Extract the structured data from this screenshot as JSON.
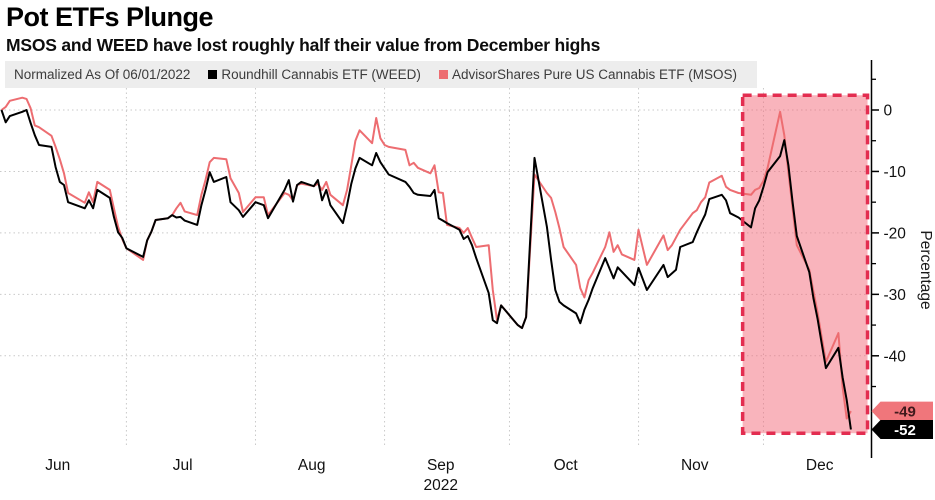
{
  "header": {
    "title": "Pot ETFs Plunge",
    "subtitle": "MSOS and WEED have lost roughly half their value from December highs"
  },
  "legend": {
    "normalized_label": "Normalized As Of 06/01/2022",
    "items": [
      {
        "label": "Roundhill Cannabis ETF (WEED)",
        "color": "#000000"
      },
      {
        "label": "AdvisorShares Pure US Cannabis ETF (MSOS)",
        "color": "#ed6d71"
      }
    ]
  },
  "chart_data": {
    "type": "line",
    "title": "Pot ETFs Plunge",
    "ylabel": "Percentage",
    "grid": true,
    "x_axis": {
      "year_label": "2022",
      "months": [
        "Jun",
        "Jul",
        "Aug",
        "Sep",
        "Oct",
        "Nov",
        "Dec"
      ],
      "month_start_days": [
        0,
        30,
        61,
        92,
        122,
        153,
        183
      ],
      "range_days": [
        0,
        209
      ]
    },
    "y_axis": {
      "title": "Percentage",
      "major_ticks": [
        0,
        -10,
        -20,
        -30,
        -40
      ],
      "minor_ticks": [
        5,
        -5,
        -15,
        -25,
        -35,
        -45
      ],
      "range": [
        -55,
        3
      ]
    },
    "highlight_region": {
      "start": "11-26",
      "end": "12-26",
      "top_value": 2.4,
      "bottom_value": -52.6,
      "fill": "#f4697a",
      "fill_opacity": 0.5,
      "border_color": "#e32d50"
    },
    "series": [
      {
        "name": "AdvisorShares Pure US Cannabis ETF (MSOS)",
        "color": "#ed6d71",
        "last_label": "-49",
        "badge_bg": "#f0767b",
        "badge_fg": "#40191c",
        "points": [
          [
            "06-01",
            0
          ],
          [
            "06-02",
            0.5
          ],
          [
            "06-03",
            1.5
          ],
          [
            "06-06",
            2
          ],
          [
            "06-07",
            1.8
          ],
          [
            "06-08",
            0.3
          ],
          [
            "06-09",
            -2.5
          ],
          [
            "06-10",
            -2.8
          ],
          [
            "06-13",
            -4.2
          ],
          [
            "06-14",
            -6
          ],
          [
            "06-15",
            -8
          ],
          [
            "06-16",
            -10.3
          ],
          [
            "06-17",
            -13.5
          ],
          [
            "06-21",
            -15.1
          ],
          [
            "06-22",
            -13.4
          ],
          [
            "06-23",
            -15
          ],
          [
            "06-24",
            -11.7
          ],
          [
            "06-27",
            -13
          ],
          [
            "06-28",
            -16
          ],
          [
            "06-29",
            -19
          ],
          [
            "06-30",
            -21
          ],
          [
            "07-01",
            -22.5
          ],
          [
            "07-05",
            -24.4
          ],
          [
            "07-06",
            -21.2
          ],
          [
            "07-07",
            -19.8
          ],
          [
            "07-08",
            -17.9
          ],
          [
            "07-11",
            -17.6
          ],
          [
            "07-12",
            -17.1
          ],
          [
            "07-13",
            -16
          ],
          [
            "07-14",
            -15.1
          ],
          [
            "07-15",
            -16.5
          ],
          [
            "07-18",
            -17.1
          ],
          [
            "07-19",
            -13.8
          ],
          [
            "07-20",
            -11.4
          ],
          [
            "07-21",
            -8.5
          ],
          [
            "07-22",
            -7.8
          ],
          [
            "07-25",
            -8
          ],
          [
            "07-26",
            -11.1
          ],
          [
            "07-28",
            -13.5
          ],
          [
            "07-29",
            -16.6
          ],
          [
            "08-01",
            -14.2
          ],
          [
            "08-03",
            -14.2
          ],
          [
            "08-04",
            -17.1
          ],
          [
            "08-08",
            -13.5
          ],
          [
            "08-09",
            -13.8
          ],
          [
            "08-10",
            -14.7
          ],
          [
            "08-11",
            -12.2
          ],
          [
            "08-12",
            -12
          ],
          [
            "08-15",
            -12.4
          ],
          [
            "08-16",
            -12
          ],
          [
            "08-17",
            -13
          ],
          [
            "08-18",
            -11.7
          ],
          [
            "08-19",
            -13.8
          ],
          [
            "08-22",
            -15.5
          ],
          [
            "08-23",
            -13
          ],
          [
            "08-24",
            -9
          ],
          [
            "08-25",
            -5
          ],
          [
            "08-26",
            -3.3
          ],
          [
            "08-29",
            -5.4
          ],
          [
            "08-30",
            -1.3
          ],
          [
            "08-31",
            -4.6
          ],
          [
            "09-01",
            -5.7
          ],
          [
            "09-02",
            -6
          ],
          [
            "09-06",
            -6.5
          ],
          [
            "09-07",
            -9
          ],
          [
            "09-08",
            -8.6
          ],
          [
            "09-09",
            -9.4
          ],
          [
            "09-12",
            -10.3
          ],
          [
            "09-13",
            -9
          ],
          [
            "09-14",
            -13.4
          ],
          [
            "09-15",
            -13.5
          ],
          [
            "09-16",
            -18.7
          ],
          [
            "09-19",
            -19.2
          ],
          [
            "09-20",
            -20
          ],
          [
            "09-21",
            -19.2
          ],
          [
            "09-22",
            -20.8
          ],
          [
            "09-23",
            -22.3
          ],
          [
            "09-26",
            -22
          ],
          [
            "09-27",
            -29.3
          ],
          [
            "09-28",
            -34.2
          ],
          [
            "09-29",
            -31.8
          ],
          [
            "10-03",
            -35
          ],
          [
            "10-04",
            -35.5
          ],
          [
            "10-05",
            -33.7
          ],
          [
            "10-07",
            -10.5
          ],
          [
            "10-10",
            -13.5
          ],
          [
            "10-11",
            -14.3
          ],
          [
            "10-12",
            -16.6
          ],
          [
            "10-13",
            -19.2
          ],
          [
            "10-14",
            -22.3
          ],
          [
            "10-17",
            -25.2
          ],
          [
            "10-18",
            -29
          ],
          [
            "10-19",
            -30.5
          ],
          [
            "10-20",
            -27.7
          ],
          [
            "10-21",
            -26.5
          ],
          [
            "10-24",
            -22.3
          ],
          [
            "10-25",
            -19.9
          ],
          [
            "10-26",
            -23.1
          ],
          [
            "10-27",
            -22
          ],
          [
            "10-28",
            -23.5
          ],
          [
            "10-31",
            -24.4
          ],
          [
            "11-01",
            -19.5
          ],
          [
            "11-03",
            -25.2
          ],
          [
            "11-07",
            -20.4
          ],
          [
            "11-08",
            -22.8
          ],
          [
            "11-09",
            -22
          ],
          [
            "11-11",
            -19.5
          ],
          [
            "11-14",
            -16.8
          ],
          [
            "11-15",
            -16.3
          ],
          [
            "11-16",
            -15
          ],
          [
            "11-17",
            -14.2
          ],
          [
            "11-18",
            -11.8
          ],
          [
            "11-21",
            -10.7
          ],
          [
            "11-22",
            -12.5
          ],
          [
            "11-23",
            -13
          ],
          [
            "11-25",
            -13.5
          ],
          [
            "11-28",
            -13.8
          ],
          [
            "11-29",
            -13
          ],
          [
            "11-30",
            -12.7
          ],
          [
            "12-01",
            -11.5
          ],
          [
            "12-02",
            -9.4
          ],
          [
            "12-05",
            -0.3
          ],
          [
            "12-06",
            -4.1
          ],
          [
            "12-07",
            -10.1
          ],
          [
            "12-08",
            -16
          ],
          [
            "12-09",
            -22
          ],
          [
            "12-12",
            -26
          ],
          [
            "12-13",
            -29.5
          ],
          [
            "12-14",
            -33
          ],
          [
            "12-15",
            -37
          ],
          [
            "12-16",
            -41
          ],
          [
            "12-19",
            -36.3
          ],
          [
            "12-20",
            -45.1
          ],
          [
            "12-21",
            -50.2
          ],
          [
            "12-22",
            -49
          ]
        ]
      },
      {
        "name": "Roundhill Cannabis ETF (WEED)",
        "color": "#000000",
        "last_label": "-52",
        "badge_bg": "#000000",
        "badge_fg": "#ffffff",
        "points": [
          [
            "06-01",
            0
          ],
          [
            "06-02",
            -2
          ],
          [
            "06-03",
            -1
          ],
          [
            "06-06",
            -0.3
          ],
          [
            "06-07",
            0
          ],
          [
            "06-08",
            -2.1
          ],
          [
            "06-09",
            -4.1
          ],
          [
            "06-10",
            -5.7
          ],
          [
            "06-13",
            -6
          ],
          [
            "06-14",
            -9.3
          ],
          [
            "06-15",
            -11.7
          ],
          [
            "06-16",
            -12.2
          ],
          [
            "06-17",
            -15
          ],
          [
            "06-21",
            -16
          ],
          [
            "06-22",
            -14.7
          ],
          [
            "06-23",
            -16
          ],
          [
            "06-24",
            -13
          ],
          [
            "06-27",
            -14.3
          ],
          [
            "06-28",
            -17.4
          ],
          [
            "06-29",
            -19.9
          ],
          [
            "06-30",
            -20.8
          ],
          [
            "07-01",
            -22.5
          ],
          [
            "07-05",
            -23.9
          ],
          [
            "07-06",
            -21.2
          ],
          [
            "07-07",
            -19.8
          ],
          [
            "07-08",
            -17.9
          ],
          [
            "07-11",
            -17.6
          ],
          [
            "07-12",
            -17.1
          ],
          [
            "07-13",
            -17.5
          ],
          [
            "07-14",
            -17.4
          ],
          [
            "07-15",
            -18
          ],
          [
            "07-18",
            -18.7
          ],
          [
            "07-19",
            -15.5
          ],
          [
            "07-20",
            -13
          ],
          [
            "07-21",
            -10.1
          ],
          [
            "07-22",
            -11.7
          ],
          [
            "07-25",
            -10.9
          ],
          [
            "07-26",
            -15
          ],
          [
            "07-28",
            -16.3
          ],
          [
            "07-29",
            -17.4
          ],
          [
            "08-01",
            -15
          ],
          [
            "08-03",
            -15.5
          ],
          [
            "08-04",
            -17.6
          ],
          [
            "08-08",
            -13
          ],
          [
            "08-09",
            -11.4
          ],
          [
            "08-10",
            -14.9
          ],
          [
            "08-11",
            -12.2
          ],
          [
            "08-12",
            -11.7
          ],
          [
            "08-15",
            -12.4
          ],
          [
            "08-16",
            -11.4
          ],
          [
            "08-17",
            -14.7
          ],
          [
            "08-18",
            -13
          ],
          [
            "08-19",
            -15.5
          ],
          [
            "08-22",
            -18.4
          ],
          [
            "08-23",
            -15.5
          ],
          [
            "08-24",
            -12
          ],
          [
            "08-25",
            -9.5
          ],
          [
            "08-26",
            -7.8
          ],
          [
            "08-29",
            -9
          ],
          [
            "08-30",
            -7
          ],
          [
            "08-31",
            -8.5
          ],
          [
            "09-01",
            -9.5
          ],
          [
            "09-02",
            -10.5
          ],
          [
            "09-06",
            -11.7
          ],
          [
            "09-07",
            -12.5
          ],
          [
            "09-08",
            -13.5
          ],
          [
            "09-09",
            -13.8
          ],
          [
            "09-12",
            -14
          ],
          [
            "09-13",
            -13
          ],
          [
            "09-14",
            -17.6
          ],
          [
            "09-15",
            -18
          ],
          [
            "09-16",
            -18.4
          ],
          [
            "09-19",
            -19.5
          ],
          [
            "09-20",
            -21
          ],
          [
            "09-21",
            -20.5
          ],
          [
            "09-22",
            -22
          ],
          [
            "09-23",
            -24.1
          ],
          [
            "09-26",
            -29.8
          ],
          [
            "09-27",
            -34.2
          ],
          [
            "09-28",
            -34.7
          ],
          [
            "09-29",
            -31.8
          ],
          [
            "10-03",
            -35
          ],
          [
            "10-04",
            -35.5
          ],
          [
            "10-05",
            -33.7
          ],
          [
            "10-07",
            -7.8
          ],
          [
            "10-10",
            -19
          ],
          [
            "10-11",
            -24.4
          ],
          [
            "10-12",
            -29.3
          ],
          [
            "10-13",
            -31.2
          ],
          [
            "10-14",
            -31.8
          ],
          [
            "10-17",
            -33.1
          ],
          [
            "10-18",
            -34.7
          ],
          [
            "10-19",
            -32.5
          ],
          [
            "10-20",
            -30.9
          ],
          [
            "10-21",
            -29
          ],
          [
            "10-24",
            -24.1
          ],
          [
            "10-26",
            -27.4
          ],
          [
            "10-27",
            -25.6
          ],
          [
            "10-31",
            -28.5
          ],
          [
            "11-01",
            -25.7
          ],
          [
            "11-03",
            -29.3
          ],
          [
            "11-07",
            -25.2
          ],
          [
            "11-08",
            -27.2
          ],
          [
            "11-10",
            -26
          ],
          [
            "11-11",
            -22.3
          ],
          [
            "11-14",
            -21.5
          ],
          [
            "11-15",
            -19.9
          ],
          [
            "11-16",
            -18.4
          ],
          [
            "11-17",
            -17
          ],
          [
            "11-18",
            -14.5
          ],
          [
            "11-21",
            -13.8
          ],
          [
            "11-22",
            -14.7
          ],
          [
            "11-23",
            -16.8
          ],
          [
            "11-25",
            -17.5
          ],
          [
            "11-28",
            -19.1
          ],
          [
            "11-29",
            -16
          ],
          [
            "11-30",
            -14.7
          ],
          [
            "12-01",
            -12.5
          ],
          [
            "12-02",
            -10.1
          ],
          [
            "12-05",
            -7.5
          ],
          [
            "12-06",
            -4.9
          ],
          [
            "12-07",
            -9
          ],
          [
            "12-08",
            -15
          ],
          [
            "12-09",
            -20.5
          ],
          [
            "12-12",
            -26.4
          ],
          [
            "12-13",
            -30.6
          ],
          [
            "12-14",
            -34
          ],
          [
            "12-15",
            -38
          ],
          [
            "12-16",
            -42
          ],
          [
            "12-19",
            -38.7
          ],
          [
            "12-20",
            -43.5
          ],
          [
            "12-21",
            -47.2
          ],
          [
            "12-22",
            -52
          ]
        ]
      }
    ]
  }
}
